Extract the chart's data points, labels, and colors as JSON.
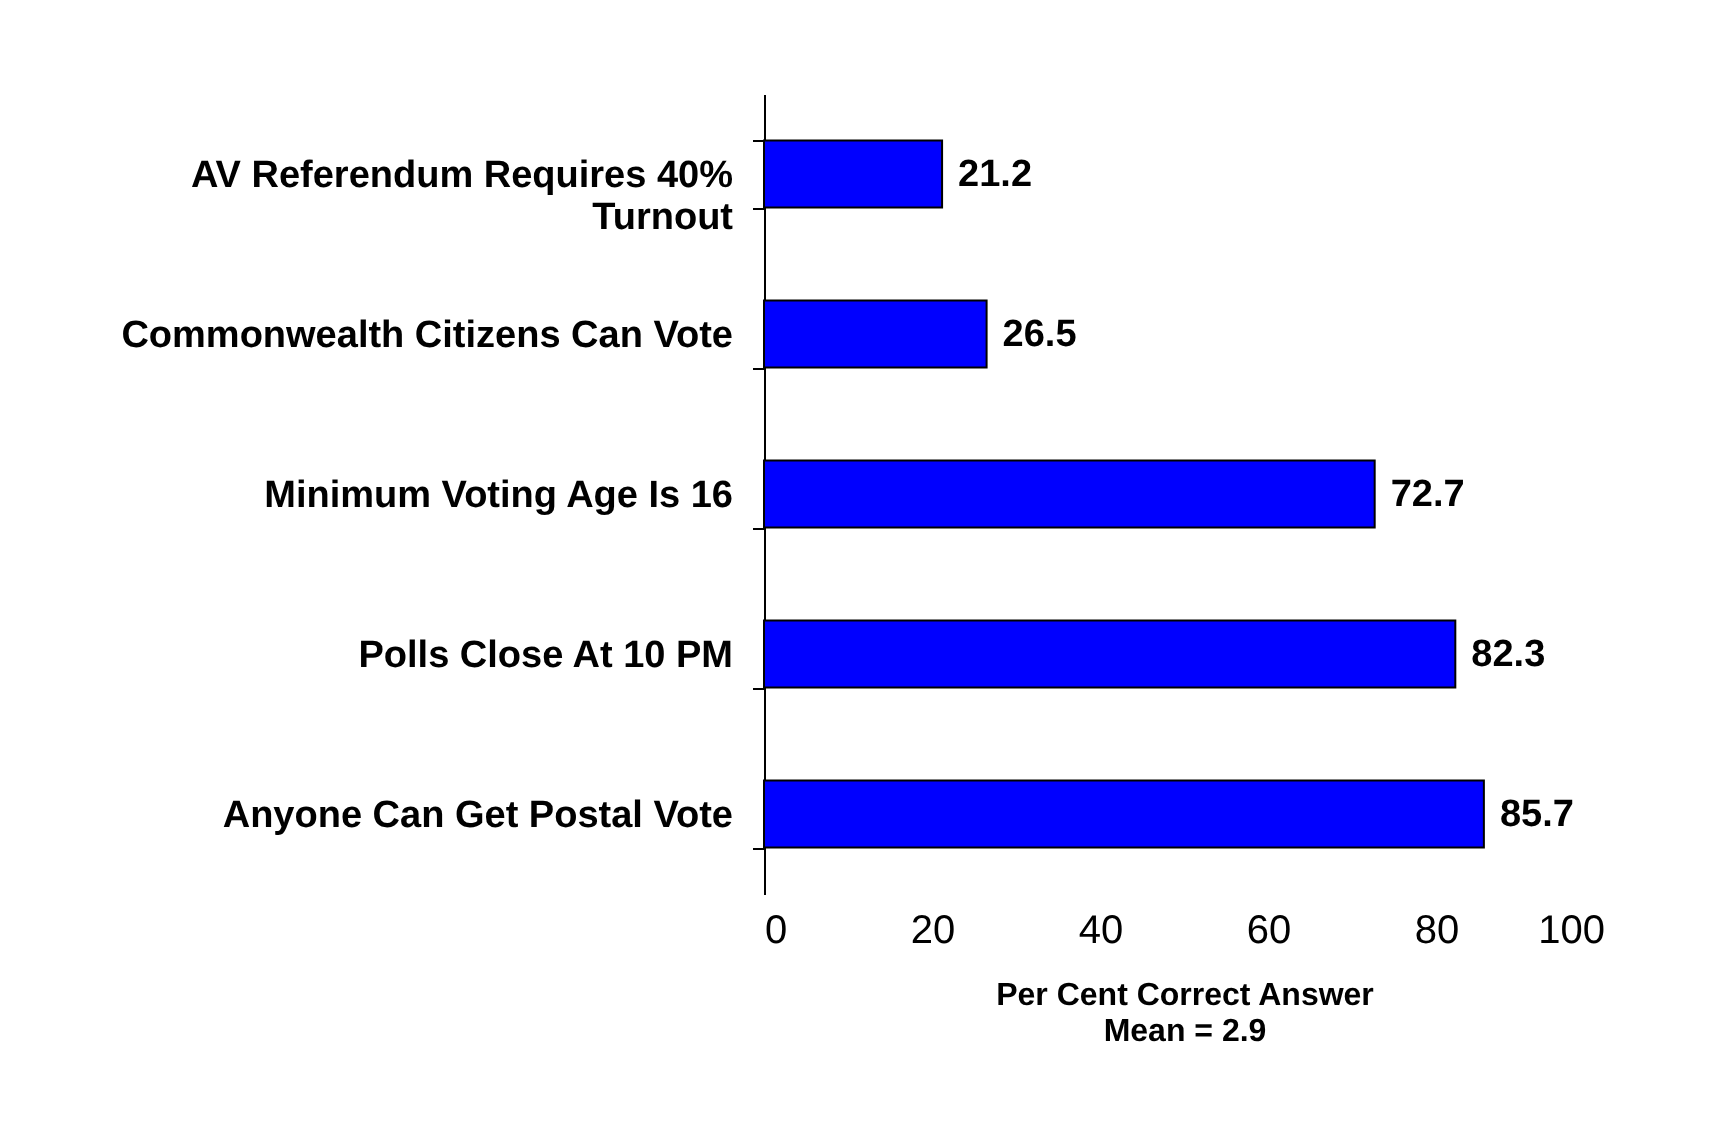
{
  "chart_data": {
    "type": "bar",
    "orientation": "horizontal",
    "categories": [
      "AV Referendum Requires 40% Turnout",
      "Commonwealth Citizens Can Vote",
      "Minimum Voting Age Is 16",
      "Polls Close At 10 PM",
      "Anyone Can Get Postal Vote"
    ],
    "values": [
      21.2,
      26.5,
      72.7,
      82.3,
      85.7
    ],
    "color": "#0000ff",
    "xlim": [
      0,
      100
    ],
    "xticks": [
      0,
      20,
      40,
      60,
      80,
      100
    ],
    "xlabel": "Per Cent Correct Answer",
    "annotations": [
      "Mean = 2.9"
    ],
    "data_labels": true,
    "grid": false
  }
}
